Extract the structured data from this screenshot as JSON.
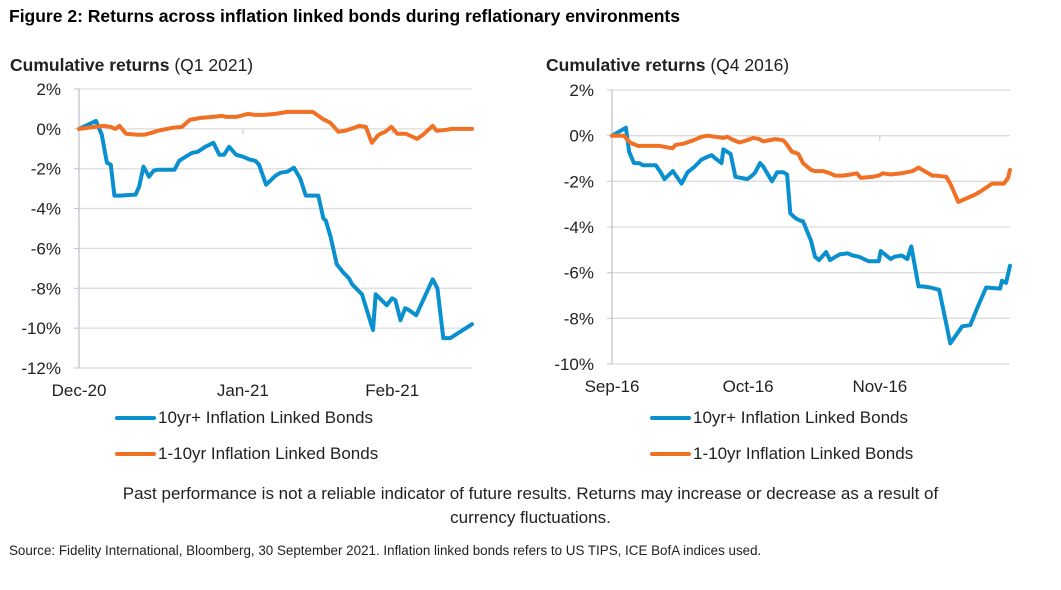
{
  "figure_title": "Figure 2: Returns across inflation linked bonds during reflationary environments",
  "disclaimer": "Past performance is not a reliable indicator of future results. Returns may increase or decrease as a result of currency fluctuations.",
  "source": "Source: Fidelity International, Bloomberg, 30 September 2021. Inflation linked bonds refers to US TIPS, ICE BofA indices used.",
  "colors": {
    "series_10yr": "#0a8fcf",
    "series_1_10yr": "#f07024",
    "grid": "#dcdcdc",
    "axis": "#c0c4cc"
  },
  "chart_data": [
    {
      "type": "line",
      "title_bold": "Cumulative returns",
      "title_rest": " (Q1 2021)",
      "xlabel": "",
      "ylabel": "",
      "ylim": [
        -12,
        2
      ],
      "yticks": [
        2,
        0,
        -2,
        -4,
        -6,
        -8,
        -10,
        -12
      ],
      "ytick_labels": [
        "2%",
        "0%",
        "-2%",
        "-4%",
        "-6%",
        "-8%",
        "-10%",
        "-12%"
      ],
      "xlim": [
        0,
        1
      ],
      "xticks": [
        0,
        0.417,
        0.797
      ],
      "xtick_labels": [
        "Dec-20",
        "Jan-21",
        "Feb-21"
      ],
      "grid": true,
      "legend_position": "bottom",
      "series": [
        {
          "name": "10yr+ Inflation Linked Bonds",
          "color_key": "series_10yr",
          "x": [
            0,
            0.043,
            0.058,
            0.071,
            0.081,
            0.09,
            0.104,
            0.144,
            0.153,
            0.164,
            0.178,
            0.19,
            0.2,
            0.243,
            0.255,
            0.275,
            0.288,
            0.302,
            0.321,
            0.342,
            0.357,
            0.369,
            0.382,
            0.4,
            0.418,
            0.435,
            0.448,
            0.458,
            0.476,
            0.5,
            0.513,
            0.53,
            0.547,
            0.563,
            0.577,
            0.594,
            0.609,
            0.622,
            0.628,
            0.64,
            0.656,
            0.672,
            0.687,
            0.695,
            0.72,
            0.748,
            0.755,
            0.77,
            0.783,
            0.797,
            0.805,
            0.818,
            0.83,
            0.84,
            0.858,
            0.9,
            0.912,
            0.927,
            0.945,
            1.0
          ],
          "y": [
            0,
            0.4,
            -0.3,
            -1.7,
            -1.8,
            -3.35,
            -3.35,
            -3.3,
            -2.9,
            -1.9,
            -2.4,
            -2.1,
            -2.05,
            -2.05,
            -1.6,
            -1.35,
            -1.2,
            -1.15,
            -0.9,
            -0.7,
            -1.3,
            -1.3,
            -0.9,
            -1.3,
            -1.4,
            -1.55,
            -1.6,
            -1.8,
            -2.8,
            -2.35,
            -2.2,
            -2.15,
            -1.95,
            -2.5,
            -3.35,
            -3.35,
            -3.35,
            -4.5,
            -4.6,
            -5.4,
            -6.8,
            -7.2,
            -7.5,
            -7.8,
            -8.3,
            -10.1,
            -8.3,
            -8.6,
            -8.85,
            -8.5,
            -8.6,
            -9.6,
            -9.0,
            -9.1,
            -9.35,
            -7.55,
            -8.0,
            -10.5,
            -10.5,
            -9.8
          ]
        },
        {
          "name": "1-10yr Inflation Linked Bonds",
          "color_key": "series_1_10yr",
          "x": [
            0,
            0.04,
            0.062,
            0.08,
            0.093,
            0.103,
            0.12,
            0.15,
            0.165,
            0.185,
            0.2,
            0.236,
            0.262,
            0.282,
            0.31,
            0.34,
            0.365,
            0.375,
            0.4,
            0.43,
            0.447,
            0.47,
            0.5,
            0.53,
            0.548,
            0.575,
            0.595,
            0.62,
            0.64,
            0.66,
            0.676,
            0.7,
            0.713,
            0.73,
            0.745,
            0.762,
            0.779,
            0.795,
            0.81,
            0.832,
            0.86,
            0.875,
            0.9,
            0.91,
            0.935,
            0.948,
            1.0
          ],
          "y": [
            0,
            0.1,
            0.15,
            0.1,
            0.0,
            0.15,
            -0.25,
            -0.3,
            -0.3,
            -0.2,
            -0.1,
            0.05,
            0.1,
            0.45,
            0.55,
            0.6,
            0.65,
            0.6,
            0.6,
            0.75,
            0.7,
            0.7,
            0.75,
            0.85,
            0.85,
            0.85,
            0.85,
            0.5,
            0.3,
            -0.15,
            -0.1,
            0.05,
            0.15,
            0.1,
            -0.7,
            -0.3,
            -0.15,
            0.1,
            -0.25,
            -0.25,
            -0.5,
            -0.3,
            0.15,
            -0.1,
            -0.05,
            0.0,
            0.0
          ]
        }
      ]
    },
    {
      "type": "line",
      "title_bold": "Cumulative returns",
      "title_rest": " (Q4 2016)",
      "xlabel": "",
      "ylabel": "",
      "ylim": [
        -10,
        2
      ],
      "yticks": [
        2,
        0,
        -2,
        -4,
        -6,
        -8,
        -10
      ],
      "ytick_labels": [
        "2%",
        "0%",
        "-2%",
        "-4%",
        "-6%",
        "-8%",
        "-10%"
      ],
      "xlim": [
        0,
        1
      ],
      "xticks": [
        0,
        0.342,
        0.673
      ],
      "xtick_labels": [
        "Sep-16",
        "Oct-16",
        "Nov-16"
      ],
      "grid": true,
      "legend_position": "bottom",
      "series": [
        {
          "name": "10yr+ Inflation Linked Bonds",
          "color_key": "series_10yr",
          "x": [
            0,
            0.035,
            0.043,
            0.055,
            0.068,
            0.078,
            0.098,
            0.11,
            0.122,
            0.132,
            0.153,
            0.175,
            0.19,
            0.205,
            0.225,
            0.25,
            0.26,
            0.275,
            0.28,
            0.298,
            0.31,
            0.34,
            0.352,
            0.36,
            0.372,
            0.38,
            0.402,
            0.415,
            0.43,
            0.44,
            0.448,
            0.46,
            0.47,
            0.48,
            0.5,
            0.51,
            0.52,
            0.538,
            0.548,
            0.562,
            0.572,
            0.592,
            0.605,
            0.62,
            0.645,
            0.67,
            0.675,
            0.7,
            0.71,
            0.728,
            0.742,
            0.752,
            0.77,
            0.78,
            0.8,
            0.822,
            0.85,
            0.88,
            0.9,
            0.92,
            0.94,
            0.975,
            0.98,
            0.99,
            1.0
          ],
          "y": [
            0,
            0.35,
            -0.7,
            -1.2,
            -1.2,
            -1.3,
            -1.3,
            -1.3,
            -1.6,
            -1.9,
            -1.55,
            -2.1,
            -1.6,
            -1.4,
            -1.05,
            -0.85,
            -1.0,
            -1.2,
            -0.6,
            -0.8,
            -1.8,
            -1.9,
            -1.75,
            -1.6,
            -1.2,
            -1.35,
            -2.0,
            -1.6,
            -1.6,
            -1.7,
            -3.4,
            -3.6,
            -3.7,
            -3.75,
            -4.6,
            -5.3,
            -5.45,
            -5.1,
            -5.45,
            -5.3,
            -5.2,
            -5.15,
            -5.25,
            -5.3,
            -5.5,
            -5.5,
            -5.05,
            -5.4,
            -5.3,
            -5.25,
            -5.4,
            -4.85,
            -6.6,
            -6.6,
            -6.65,
            -6.75,
            -9.1,
            -8.35,
            -8.3,
            -7.45,
            -6.65,
            -6.7,
            -6.35,
            -6.45,
            -5.7
          ]
        },
        {
          "name": "1-10yr Inflation Linked Bonds",
          "color_key": "series_1_10yr",
          "x": [
            0,
            0.03,
            0.045,
            0.065,
            0.09,
            0.12,
            0.135,
            0.152,
            0.16,
            0.18,
            0.205,
            0.225,
            0.24,
            0.26,
            0.28,
            0.29,
            0.3,
            0.32,
            0.34,
            0.355,
            0.37,
            0.38,
            0.41,
            0.43,
            0.438,
            0.452,
            0.468,
            0.48,
            0.5,
            0.51,
            0.53,
            0.548,
            0.56,
            0.58,
            0.6,
            0.615,
            0.625,
            0.655,
            0.67,
            0.68,
            0.7,
            0.728,
            0.755,
            0.77,
            0.775,
            0.805,
            0.815,
            0.84,
            0.85,
            0.87,
            0.89,
            0.91,
            0.925,
            0.955,
            0.965,
            0.985,
            0.995,
            1.0
          ],
          "y": [
            0,
            0.0,
            -0.3,
            -0.45,
            -0.45,
            -0.45,
            -0.5,
            -0.55,
            -0.4,
            -0.35,
            -0.2,
            -0.05,
            0.0,
            -0.05,
            -0.1,
            -0.05,
            -0.15,
            -0.3,
            -0.2,
            -0.1,
            -0.15,
            -0.25,
            -0.15,
            -0.2,
            -0.35,
            -0.7,
            -0.8,
            -1.2,
            -1.5,
            -1.55,
            -1.55,
            -1.65,
            -1.75,
            -1.75,
            -1.7,
            -1.65,
            -1.85,
            -1.8,
            -1.75,
            -1.65,
            -1.7,
            -1.65,
            -1.55,
            -1.4,
            -1.45,
            -1.75,
            -1.75,
            -1.8,
            -2.1,
            -2.9,
            -2.75,
            -2.6,
            -2.45,
            -2.1,
            -2.1,
            -2.1,
            -1.85,
            -1.5
          ]
        }
      ]
    }
  ]
}
